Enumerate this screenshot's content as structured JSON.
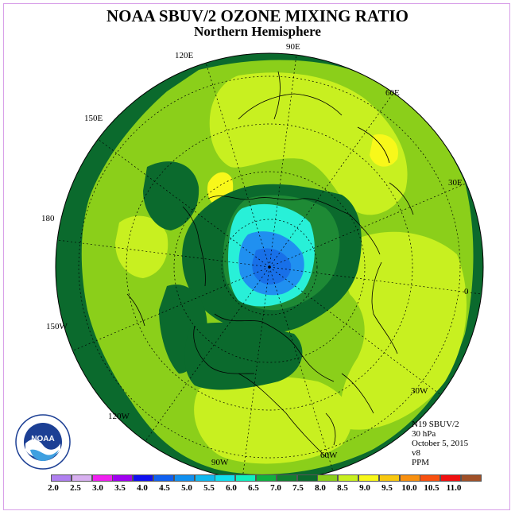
{
  "header": {
    "title": "NOAA SBUV/2 OZONE MIXING RATIO",
    "subtitle": "Northern Hemisphere"
  },
  "map": {
    "longitude_labels": [
      "90E",
      "60E",
      "30E",
      "0",
      "30W",
      "60W",
      "90W",
      "120W",
      "150W",
      "180",
      "150E",
      "120E"
    ],
    "colors": {
      "ozone_6_5_to_7": "#0b6a2d",
      "ozone_6_to_6_5": "#1e8a35",
      "ozone_7_to_7_5": "#8bcf1a",
      "ozone_7_5_to_8": "#c8f020",
      "ozone_8_to_8_5": "#f8f81a",
      "low_ozone_cyan": "#28f0d8",
      "low_ozone_blue": "#2090f0",
      "coastline": "#000000",
      "grid": "#000000"
    }
  },
  "info": {
    "satellite": "N19 SBUV/2",
    "level": "30 hPa",
    "date": "October 5, 2015",
    "version": "v8",
    "units": "PPM"
  },
  "logo": {
    "text": "NOAA",
    "ring_text": "NATIONAL OCEANIC AND ATMOSPHERIC ADMINISTRATION · U.S. DEPARTMENT OF COMMERCE"
  },
  "colorbar": {
    "colors": [
      "#b080f0",
      "#d8b0f0",
      "#f020f0",
      "#a000f0",
      "#1010f0",
      "#1060f0",
      "#1090f0",
      "#10b8f0",
      "#10e0f0",
      "#10f0c0",
      "#10b040",
      "#108030",
      "#0b6a2d",
      "#8bcf1a",
      "#c8f020",
      "#f8f81a",
      "#f8c810",
      "#f89010",
      "#f85010",
      "#f01010",
      "#a05028"
    ],
    "ticks": [
      "2.0",
      "2.5",
      "3.0",
      "3.5",
      "4.0",
      "4.5",
      "5.0",
      "5.5",
      "6.0",
      "6.5",
      "7.0",
      "7.5",
      "8.0",
      "8.5",
      "9.0",
      "9.5",
      "10.0",
      "10.5",
      "11.0"
    ]
  }
}
